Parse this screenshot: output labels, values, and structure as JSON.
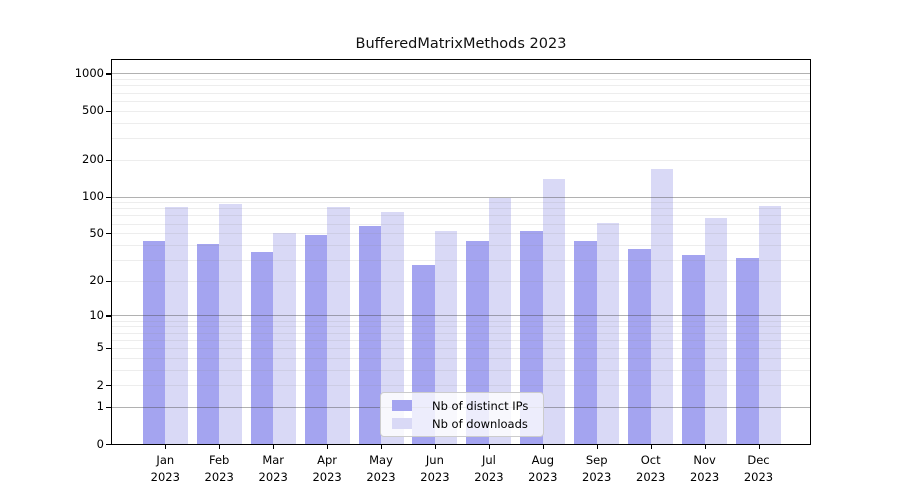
{
  "chart_data": {
    "type": "bar",
    "title": "BufferedMatrixMethods 2023",
    "categories": [
      "Jan 2023",
      "Feb 2023",
      "Mar 2023",
      "Apr 2023",
      "May 2023",
      "Jun 2023",
      "Jul 2023",
      "Aug 2023",
      "Sep 2023",
      "Oct 2023",
      "Nov 2023",
      "Dec 2023"
    ],
    "series": [
      {
        "name": "Nb of distinct IPs",
        "color": "#a4a4f0",
        "values": [
          43,
          41,
          35,
          48,
          57,
          27,
          43,
          52,
          43,
          37,
          33,
          31
        ]
      },
      {
        "name": "Nb of downloads",
        "color": "#d9d9f6",
        "values": [
          82,
          87,
          50,
          82,
          74,
          52,
          98,
          140,
          61,
          169,
          67,
          83
        ]
      }
    ],
    "yscale": "log10(value+1)",
    "yticks": [
      0,
      1,
      2,
      5,
      10,
      20,
      50,
      100,
      200,
      500,
      1000
    ],
    "ylim": [
      0,
      1285
    ],
    "xlabel": "",
    "ylabel": "",
    "grid": "horizontal major at 1,10,100,1000 and minor log lines, drawn over bars",
    "legend_position": "lower center inside plot"
  }
}
